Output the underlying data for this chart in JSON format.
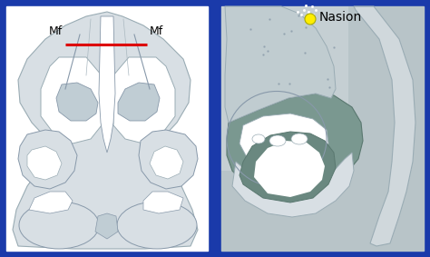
{
  "background_color": "#1a3aaa",
  "left_panel_bg": "#ffffff",
  "nasal_light": "#d8dfe4",
  "nasal_mid": "#c0cdd4",
  "nasal_dark": "#a8b8c0",
  "text_color": "#000000",
  "red_color": "#dd0000",
  "yellow_color": "#ffee00",
  "green_gray": "#7a9890",
  "green_gray_light": "#9ab0a8",
  "right_bg": "#b8c4c8",
  "right_light_bg": "#c8d0d4",
  "nose_pipe_color": "#d0d8dc",
  "mf_left_label": "Mf",
  "mf_right_label": "Mf",
  "nasion_label": "Nasion",
  "fig_width": 4.74,
  "fig_height": 2.83,
  "dpi": 100
}
